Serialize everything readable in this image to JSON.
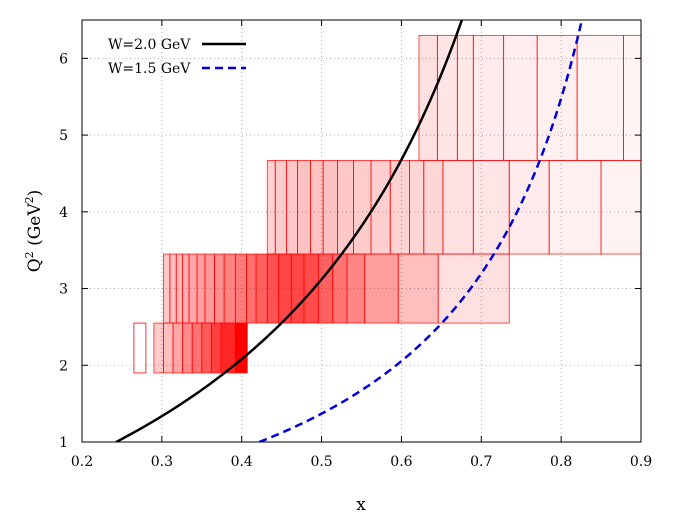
{
  "chart_data": {
    "type": "line",
    "xlabel": "x",
    "ylabel_main": "Q",
    "ylabel_sup": "2",
    "ylabel_unit_open": " (GeV",
    "ylabel_unit_sup": "2",
    "ylabel_unit_close": ")",
    "xlim": [
      0.2,
      0.9
    ],
    "ylim": [
      1,
      6.5
    ],
    "x_ticks": [
      0.2,
      0.3,
      0.4,
      0.5,
      0.6,
      0.7,
      0.8,
      0.9
    ],
    "x_tick_labels": [
      "0.2",
      "0.3",
      "0.4",
      "0.5",
      "0.6",
      "0.7",
      "0.8",
      "0.9"
    ],
    "y_ticks": [
      1,
      2,
      3,
      4,
      5,
      6
    ],
    "y_tick_labels": [
      "1",
      "2",
      "3",
      "4",
      "5",
      "6"
    ],
    "grid": true,
    "legend_position": "top-left",
    "series": [
      {
        "name": "W=2.0 GeV",
        "W": 2.0,
        "color": "#000000",
        "style": "solid"
      },
      {
        "name": "W=1.5 GeV",
        "W": 1.5,
        "color": "#0000dd",
        "style": "dashed"
      }
    ],
    "bins": {
      "color": "#ff0000",
      "rows": [
        {
          "q2": [
            1.9,
            2.55
          ],
          "x_edges": [
            [
              0.265,
              0.28
            ]
          ]
        },
        {
          "q2": [
            1.9,
            2.55
          ],
          "x_edges": [
            0.29,
            0.302,
            0.314,
            0.326,
            0.338,
            0.35,
            0.362,
            0.374,
            0.392,
            0.407
          ],
          "density": [
            0.2,
            0.25,
            0.35,
            0.45,
            0.55,
            0.65,
            0.75,
            0.85,
            1.0
          ]
        },
        {
          "q2": [
            2.55,
            3.45
          ],
          "x_edges": [
            0.302,
            0.31,
            0.318,
            0.326,
            0.334,
            0.344,
            0.354,
            0.366,
            0.378,
            0.392,
            0.406,
            0.418,
            0.432,
            0.446,
            0.462,
            0.478,
            0.496,
            0.514,
            0.532,
            0.554,
            0.596,
            0.646,
            0.735
          ],
          "density": [
            0.22,
            0.25,
            0.28,
            0.31,
            0.34,
            0.37,
            0.4,
            0.44,
            0.48,
            0.52,
            0.56,
            0.62,
            0.68,
            0.72,
            0.72,
            0.7,
            0.62,
            0.55,
            0.48,
            0.38,
            0.25,
            0.12
          ]
        },
        {
          "q2": [
            3.45,
            4.67
          ],
          "x_edges": [
            0.432,
            0.442,
            0.456,
            0.47,
            0.486,
            0.502,
            0.52,
            0.54,
            0.562,
            0.586,
            0.61,
            0.628,
            0.652,
            0.69,
            0.735,
            0.785,
            0.85,
            0.9
          ],
          "density": [
            0.18,
            0.2,
            0.22,
            0.24,
            0.24,
            0.24,
            0.22,
            0.2,
            0.19,
            0.18,
            0.17,
            0.16,
            0.12,
            0.1,
            0.08,
            0.06,
            0.05
          ]
        },
        {
          "q2": [
            4.67,
            6.3
          ],
          "x_edges": [
            0.622,
            0.645,
            0.67,
            0.69,
            0.728,
            0.77,
            0.82,
            0.878,
            0.9
          ],
          "density": [
            0.12,
            0.1,
            0.09,
            0.08,
            0.07,
            0.06,
            0.05,
            0.04
          ]
        }
      ]
    }
  }
}
